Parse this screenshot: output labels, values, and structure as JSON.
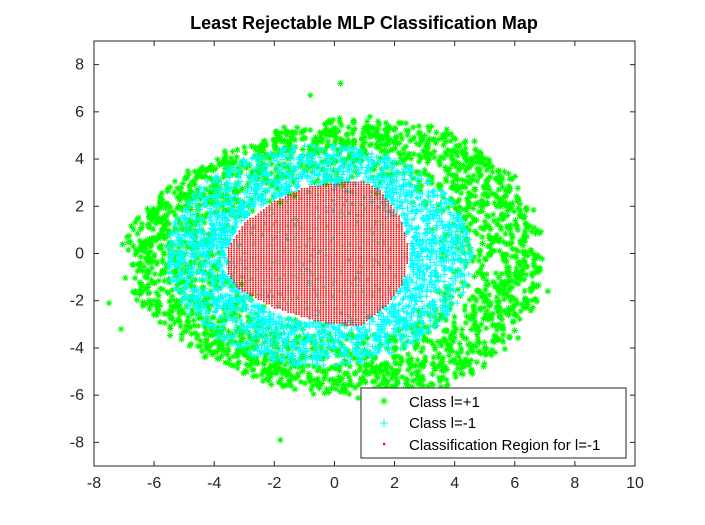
{
  "chart_data": {
    "type": "scatter",
    "title": "Least Rejectable MLP Classification Map",
    "xlabel": "",
    "ylabel": "",
    "xlim": [
      -8,
      10
    ],
    "ylim": [
      -9,
      9
    ],
    "xticks": [
      "-8",
      "-6",
      "-4",
      "-2",
      "0",
      "2",
      "4",
      "6",
      "8",
      "10"
    ],
    "yticks": [
      "-8",
      "-6",
      "-4",
      "-2",
      "0",
      "2",
      "4",
      "6",
      "8"
    ],
    "legend_position": "bottom-right",
    "grid": false,
    "series": [
      {
        "name": "Class l=+1",
        "marker": "asterisk",
        "color": "#00ff00",
        "distribution": "ring around origin, radius approx 3.5 to 7.5",
        "outlier_points": [
          [
            0.2,
            7.2
          ],
          [
            -7.5,
            -2.1
          ],
          [
            7.1,
            -1.6
          ],
          [
            -1.8,
            -7.9
          ],
          [
            -7.1,
            -3.2
          ],
          [
            -6.9,
            0.7
          ],
          [
            5.1,
            -6.2
          ],
          [
            -0.8,
            6.7
          ]
        ]
      },
      {
        "name": "Class l=-1",
        "marker": "plus",
        "color": "#00ffff",
        "distribution": "dense band around the classification region, radius approx 3.0 to 4.5"
      },
      {
        "name": "Classification Region for l=-1",
        "marker": "dot",
        "color": "#ff0000",
        "boundary": [
          [
            -3.6,
            0.1
          ],
          [
            -3.0,
            1.3
          ],
          [
            -2.0,
            2.2
          ],
          [
            -1.0,
            2.8
          ],
          [
            0.0,
            3.0
          ],
          [
            1.0,
            3.05
          ],
          [
            1.5,
            2.7
          ],
          [
            2.2,
            1.5
          ],
          [
            2.5,
            0.0
          ],
          [
            2.3,
            -1.2
          ],
          [
            1.7,
            -2.3
          ],
          [
            0.8,
            -3.1
          ],
          [
            -0.5,
            -2.9
          ],
          [
            -2.0,
            -2.3
          ],
          [
            -3.2,
            -1.5
          ],
          [
            -3.6,
            -0.8
          ]
        ]
      }
    ]
  }
}
